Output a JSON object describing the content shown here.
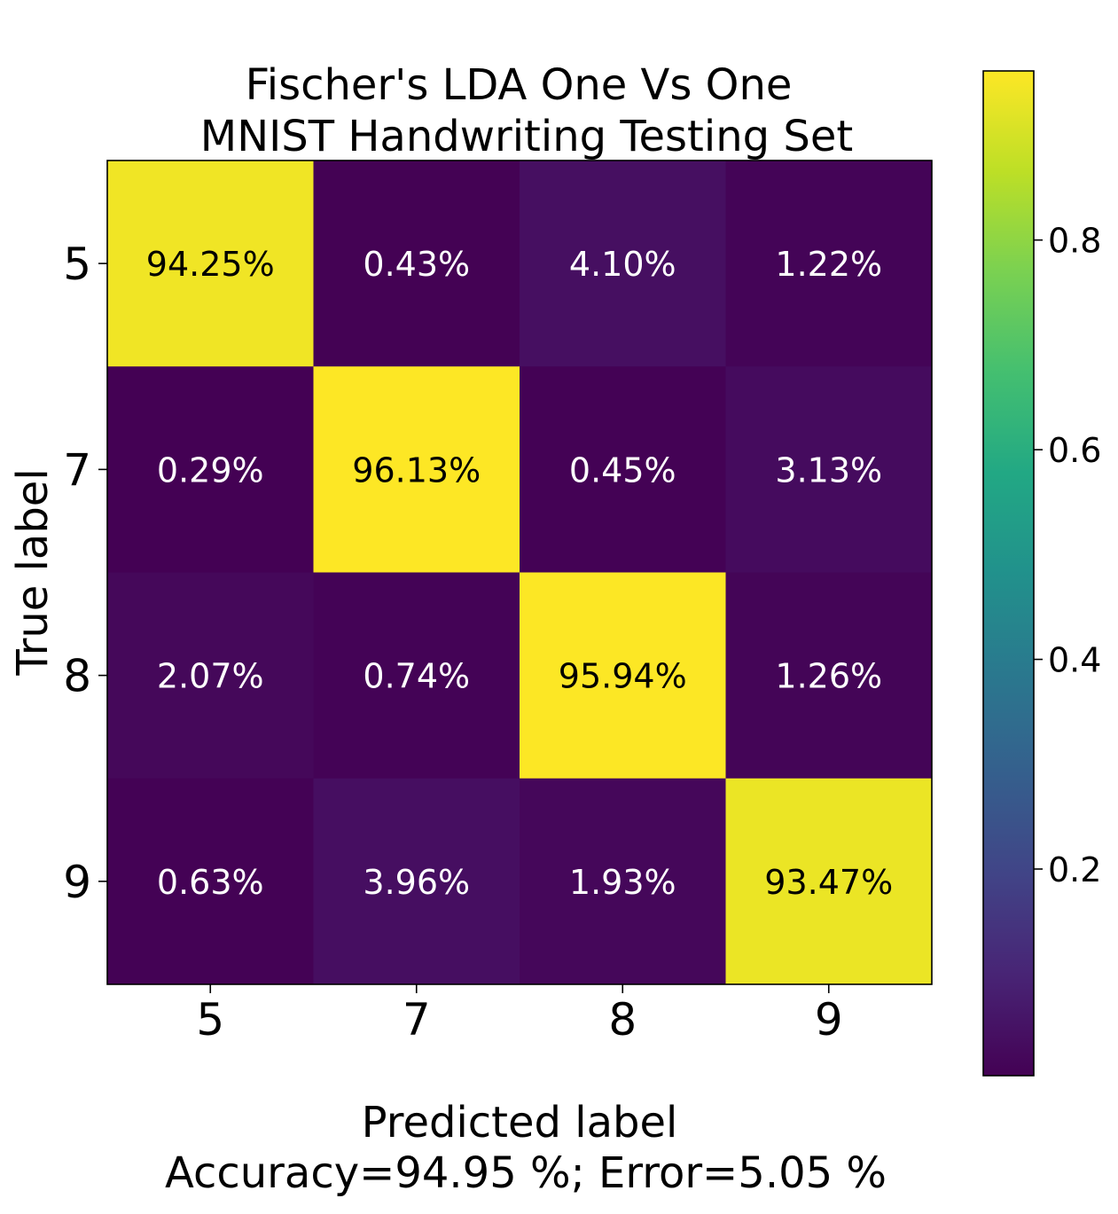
{
  "chart_data": {
    "type": "heatmap",
    "title_lines": [
      "Fischer's LDA  One Vs One",
      "MNIST Handwriting Testing Set"
    ],
    "xlabel": "Predicted label",
    "footer": "Accuracy=94.95 %; Error=5.05 %",
    "ylabel": "True label",
    "x_categories": [
      "5",
      "7",
      "8",
      "9"
    ],
    "y_categories": [
      "5",
      "7",
      "8",
      "9"
    ],
    "values": [
      [
        0.9425,
        0.0043,
        0.041,
        0.0122
      ],
      [
        0.0029,
        0.9613,
        0.0045,
        0.0313
      ],
      [
        0.0207,
        0.0074,
        0.9594,
        0.0126
      ],
      [
        0.0063,
        0.0396,
        0.0193,
        0.9347
      ]
    ],
    "cell_labels": [
      [
        "94.25%",
        "0.43%",
        "4.10%",
        "1.22%"
      ],
      [
        "0.29%",
        "96.13%",
        "0.45%",
        "3.13%"
      ],
      [
        "2.07%",
        "0.74%",
        "95.94%",
        "1.26%"
      ],
      [
        "0.63%",
        "3.96%",
        "1.93%",
        "93.47%"
      ]
    ],
    "colormap": "viridis",
    "color_range": [
      0.0029,
      0.9613
    ],
    "colorbar_ticks": [
      0.2,
      0.4,
      0.6,
      0.8
    ],
    "colorbar_tick_labels": [
      "0.2",
      "0.4",
      "0.6",
      "0.8"
    ],
    "label_colors": {
      "light": "#ffffff",
      "dark": "#000000"
    }
  }
}
